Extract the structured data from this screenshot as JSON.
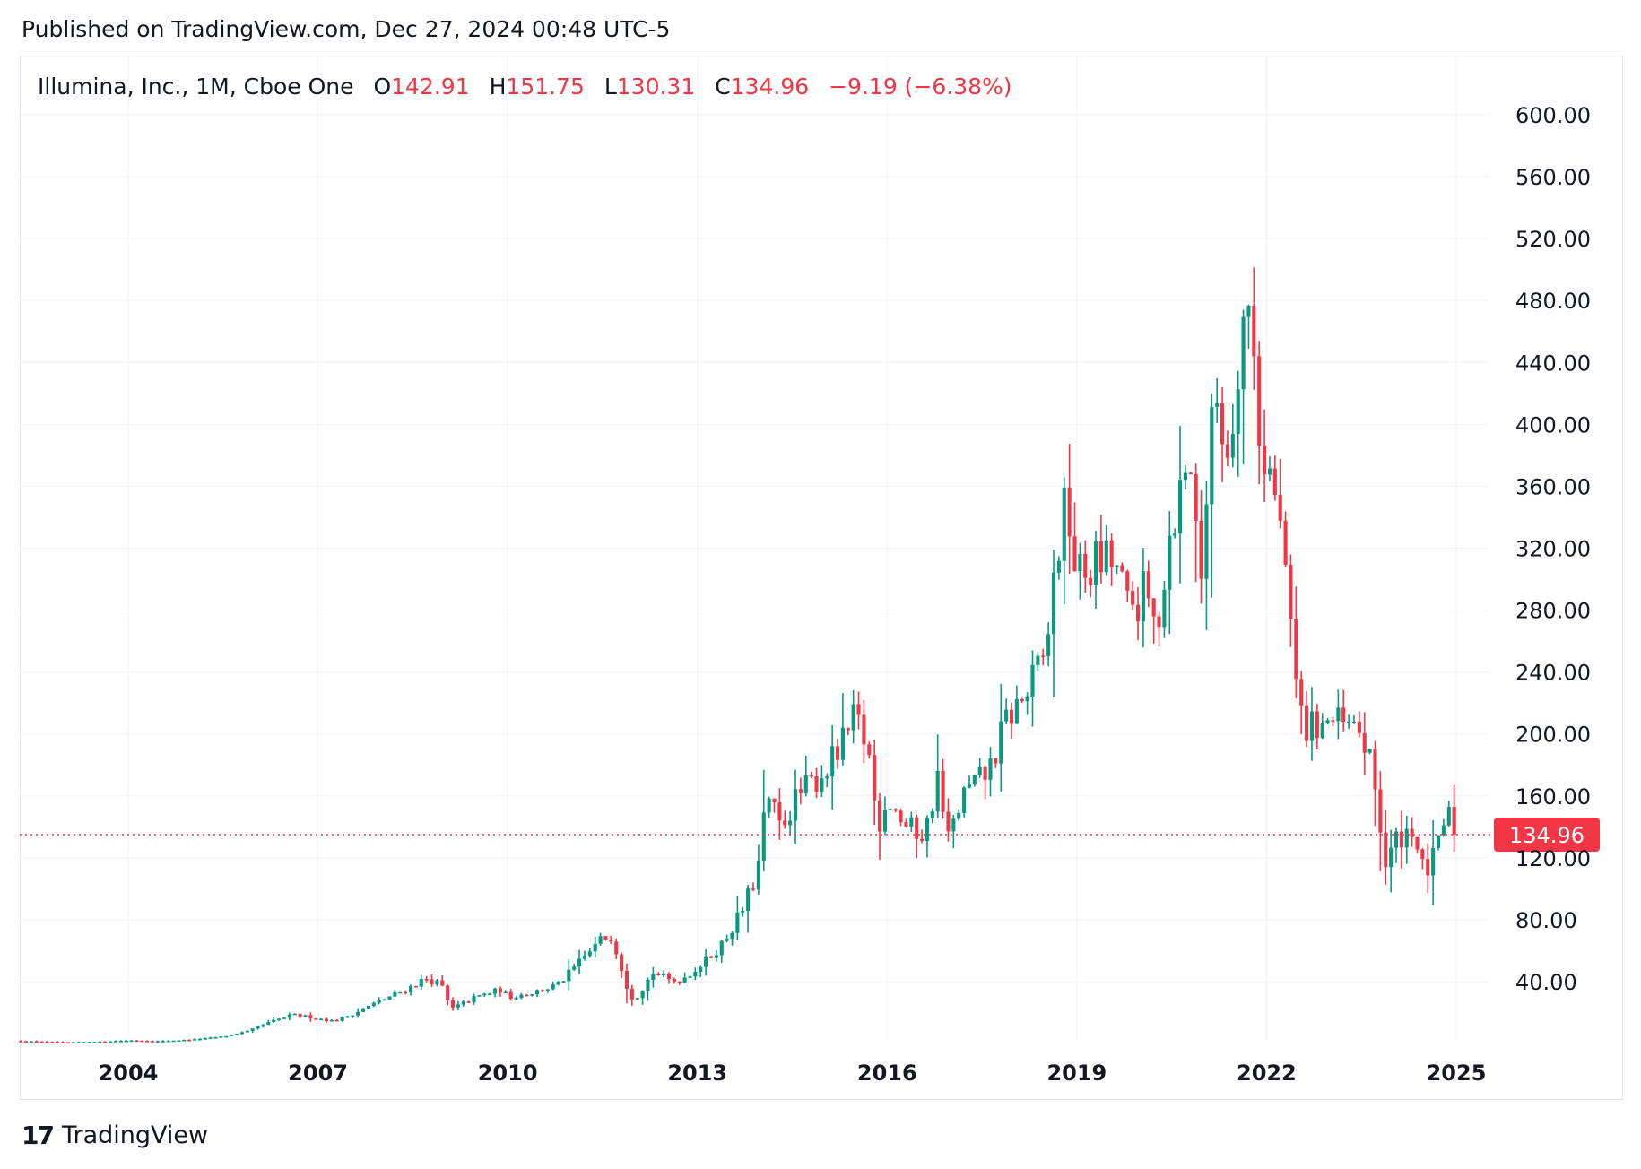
{
  "header": {
    "published": "Published on TradingView.com, Dec 27, 2024 00:48 UTC-5"
  },
  "legend": {
    "symbol": "Illumina, Inc., 1M, Cboe One",
    "o_label": "O",
    "o_value": "142.91",
    "h_label": "H",
    "h_value": "151.75",
    "l_label": "L",
    "l_value": "130.31",
    "c_label": "C",
    "c_value": "134.96",
    "change": "−9.19 (−6.38%)"
  },
  "footer": {
    "brand": "TradingView",
    "logo_mark": "17"
  },
  "colors": {
    "up": "#089981",
    "down": "#f23645",
    "grid": "#f0f3fa",
    "text": "#131722",
    "price_line": "#f23645"
  },
  "chart_data": {
    "type": "candlestick",
    "interval": "1M",
    "last_price_label": "134.96",
    "last_price": 134.96,
    "ylim": [
      -10,
      625
    ],
    "y_ticks": [
      40,
      80,
      120,
      160,
      200,
      240,
      280,
      320,
      360,
      400,
      440,
      480,
      520,
      560,
      600
    ],
    "y_tick_labels": [
      "40.00",
      "80.00",
      "120.00",
      "160.00",
      "200.00",
      "240.00",
      "280.00",
      "320.00",
      "360.00",
      "400.00",
      "440.00",
      "480.00",
      "520.00",
      "560.00",
      "600.00"
    ],
    "x_range": [
      2002.3,
      2025.8
    ],
    "x_ticks": [
      2004,
      2007,
      2010,
      2013,
      2016,
      2019,
      2022,
      2025
    ],
    "x_tick_labels": [
      "2004",
      "2007",
      "2010",
      "2013",
      "2016",
      "2019",
      "2022",
      "2025"
    ],
    "grid": true,
    "anchors": [
      [
        2002.3,
        1.6
      ],
      [
        2003.0,
        0.8
      ],
      [
        2003.6,
        1.2
      ],
      [
        2004.0,
        2.0
      ],
      [
        2004.5,
        1.5
      ],
      [
        2005.0,
        2.5
      ],
      [
        2005.5,
        4.5
      ],
      [
        2005.9,
        8.0
      ],
      [
        2006.25,
        14.0
      ],
      [
        2006.6,
        18.5
      ],
      [
        2006.9,
        17.0
      ],
      [
        2007.25,
        14.5
      ],
      [
        2007.6,
        20.0
      ],
      [
        2008.0,
        28.0
      ],
      [
        2008.4,
        35.0
      ],
      [
        2008.7,
        42.0
      ],
      [
        2008.95,
        38.0
      ],
      [
        2009.1,
        22.0
      ],
      [
        2009.5,
        30.0
      ],
      [
        2009.9,
        35.0
      ],
      [
        2010.0,
        30.0
      ],
      [
        2010.4,
        33.0
      ],
      [
        2010.8,
        38.0
      ],
      [
        2011.2,
        55.0
      ],
      [
        2011.5,
        68.0
      ],
      [
        2011.65,
        70.0
      ],
      [
        2011.9,
        35.0
      ],
      [
        2012.0,
        28.0
      ],
      [
        2012.3,
        46.0
      ],
      [
        2012.6,
        40.0
      ],
      [
        2012.8,
        43.0
      ],
      [
        2013.1,
        52.0
      ],
      [
        2013.4,
        65.0
      ],
      [
        2013.7,
        85.0
      ],
      [
        2013.95,
        110.0
      ],
      [
        2014.1,
        160.0
      ],
      [
        2014.3,
        140.0
      ],
      [
        2014.6,
        160.0
      ],
      [
        2014.9,
        172.0
      ],
      [
        2015.2,
        185.0
      ],
      [
        2015.5,
        210.0
      ],
      [
        2015.7,
        190.0
      ],
      [
        2015.85,
        140.0
      ],
      [
        2016.0,
        160.0
      ],
      [
        2016.3,
        140.0
      ],
      [
        2016.6,
        135.0
      ],
      [
        2016.8,
        172.0
      ],
      [
        2016.95,
        130.0
      ],
      [
        2017.2,
        160.0
      ],
      [
        2017.6,
        175.0
      ],
      [
        2017.9,
        210.0
      ],
      [
        2018.2,
        225.0
      ],
      [
        2018.5,
        250.0
      ],
      [
        2018.7,
        320.0
      ],
      [
        2018.85,
        350.0
      ],
      [
        2019.0,
        300.0
      ],
      [
        2019.3,
        310.0
      ],
      [
        2019.6,
        310.0
      ],
      [
        2019.8,
        280.0
      ],
      [
        2020.1,
        290.0
      ],
      [
        2020.25,
        265.0
      ],
      [
        2020.5,
        340.0
      ],
      [
        2020.8,
        375.0
      ],
      [
        2020.95,
        300.0
      ],
      [
        2021.1,
        380.0
      ],
      [
        2021.2,
        420.0
      ],
      [
        2021.4,
        380.0
      ],
      [
        2021.6,
        470.0
      ],
      [
        2021.75,
        470.0
      ],
      [
        2021.9,
        390.0
      ],
      [
        2022.1,
        360.0
      ],
      [
        2022.3,
        310.0
      ],
      [
        2022.4,
        250.0
      ],
      [
        2022.6,
        200.0
      ],
      [
        2022.9,
        210.0
      ],
      [
        2023.2,
        205.0
      ],
      [
        2023.5,
        200.0
      ],
      [
        2023.7,
        170.0
      ],
      [
        2023.9,
        110.0
      ],
      [
        2024.0,
        130.0
      ],
      [
        2024.3,
        140.0
      ],
      [
        2024.5,
        108.0
      ],
      [
        2024.7,
        125.0
      ],
      [
        2024.85,
        150.0
      ],
      [
        2024.98,
        134.96
      ]
    ]
  }
}
